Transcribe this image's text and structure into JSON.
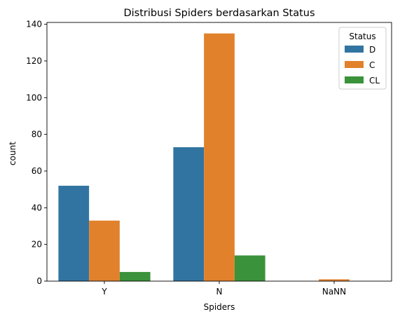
{
  "chart_data": {
    "type": "bar",
    "title": "Distribusi Spiders berdasarkan Status",
    "xlabel": "Spiders",
    "ylabel": "count",
    "categories": [
      "Y",
      "N",
      "NaNN"
    ],
    "series": [
      {
        "name": "D",
        "values": [
          52,
          73,
          0
        ],
        "color": "#3274a1"
      },
      {
        "name": "C",
        "values": [
          33,
          135,
          1
        ],
        "color": "#e1812c"
      },
      {
        "name": "CL",
        "values": [
          5,
          14,
          0
        ],
        "color": "#3a923a"
      }
    ],
    "ylim": [
      0,
      141
    ],
    "yticks": [
      0,
      20,
      40,
      60,
      80,
      100,
      120,
      140
    ],
    "legend": {
      "title": "Status",
      "placement": "top-right"
    },
    "grid": false
  }
}
